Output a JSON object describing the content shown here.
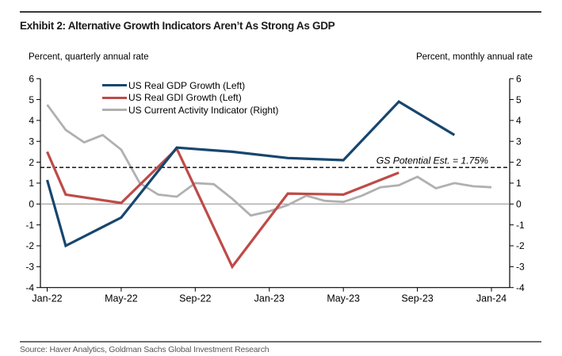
{
  "page": {
    "title": "Exhibit 2: Alternative Growth Indicators Aren’t As Strong As GDP",
    "source": "Source: Haver Analytics, Goldman Sachs Global Investment Research"
  },
  "axis_captions": {
    "left": "Percent, quarterly annual rate",
    "right": "Percent, monthly annual rate"
  },
  "chart_data": {
    "type": "line",
    "title": "Exhibit 2: Alternative Growth Indicators Aren’t As Strong As GDP",
    "ylabel_left": "Percent, quarterly annual rate",
    "ylabel_right": "Percent, monthly annual rate",
    "ylim": [
      -4,
      6
    ],
    "y_ticks": [
      6,
      5,
      4,
      3,
      2,
      1,
      0,
      -1,
      -2,
      -3,
      -4
    ],
    "dual_axis": true,
    "grid": false,
    "legend_position": "top-left-inside",
    "x_months": [
      "Jan-22",
      "Feb-22",
      "Mar-22",
      "Apr-22",
      "May-22",
      "Jun-22",
      "Jul-22",
      "Aug-22",
      "Sep-22",
      "Oct-22",
      "Nov-22",
      "Dec-22",
      "Jan-23",
      "Feb-23",
      "Mar-23",
      "Apr-23",
      "May-23",
      "Jun-23",
      "Jul-23",
      "Aug-23",
      "Sep-23",
      "Oct-23",
      "Nov-23",
      "Dec-23",
      "Jan-24"
    ],
    "x_tick_labels": [
      "Jan-22",
      "May-22",
      "Sep-22",
      "Jan-23",
      "May-23",
      "Sep-23",
      "Jan-24"
    ],
    "zero_line": true,
    "zero_line_color": "#8c8c8c",
    "axis_color": "#000000",
    "reference_line": {
      "value": 1.75,
      "label": "GS Potential Est. = 1.75%",
      "style": "dashed",
      "color": "#000000"
    },
    "series": [
      {
        "name": "US Real GDP Growth (Left)",
        "axis": "left",
        "frequency": "quarterly",
        "color": "#17466e",
        "width": 3.2,
        "points": [
          [
            "Jan-22",
            1.15
          ],
          [
            "Feb-22",
            -2.0
          ],
          [
            "May-22",
            -0.65
          ],
          [
            "Aug-22",
            2.7
          ],
          [
            "Nov-22",
            2.5
          ],
          [
            "Feb-23",
            2.2
          ],
          [
            "May-23",
            2.1
          ],
          [
            "Aug-23",
            4.9
          ],
          [
            "Nov-23",
            3.3
          ]
        ]
      },
      {
        "name": "US Real GDI Growth (Left)",
        "axis": "left",
        "frequency": "quarterly",
        "color": "#be4b48",
        "width": 3.2,
        "points": [
          [
            "Jan-22",
            2.5
          ],
          [
            "Feb-22",
            0.45
          ],
          [
            "May-22",
            0.05
          ],
          [
            "Aug-22",
            2.65
          ],
          [
            "Nov-22",
            -3.0
          ],
          [
            "Feb-23",
            0.5
          ],
          [
            "May-23",
            0.45
          ],
          [
            "Aug-23",
            1.5
          ]
        ]
      },
      {
        "name": "US Current Activity Indicator (Right)",
        "axis": "right",
        "frequency": "monthly",
        "color": "#b0b0b0",
        "width": 2.8,
        "points": [
          [
            "Jan-22",
            4.75
          ],
          [
            "Feb-22",
            3.55
          ],
          [
            "Mar-22",
            2.95
          ],
          [
            "Apr-22",
            3.3
          ],
          [
            "May-22",
            2.6
          ],
          [
            "Jun-22",
            1.0
          ],
          [
            "Jul-22",
            0.45
          ],
          [
            "Aug-22",
            0.35
          ],
          [
            "Sep-22",
            1.0
          ],
          [
            "Oct-22",
            0.95
          ],
          [
            "Nov-22",
            0.25
          ],
          [
            "Dec-22",
            -0.55
          ],
          [
            "Jan-23",
            -0.35
          ],
          [
            "Feb-23",
            -0.05
          ],
          [
            "Mar-23",
            0.4
          ],
          [
            "Apr-23",
            0.15
          ],
          [
            "May-23",
            0.1
          ],
          [
            "Jun-23",
            0.4
          ],
          [
            "Jul-23",
            0.8
          ],
          [
            "Aug-23",
            0.9
          ],
          [
            "Sep-23",
            1.3
          ],
          [
            "Oct-23",
            0.75
          ],
          [
            "Nov-23",
            1.0
          ],
          [
            "Dec-23",
            0.85
          ],
          [
            "Jan-24",
            0.8
          ]
        ]
      }
    ]
  }
}
